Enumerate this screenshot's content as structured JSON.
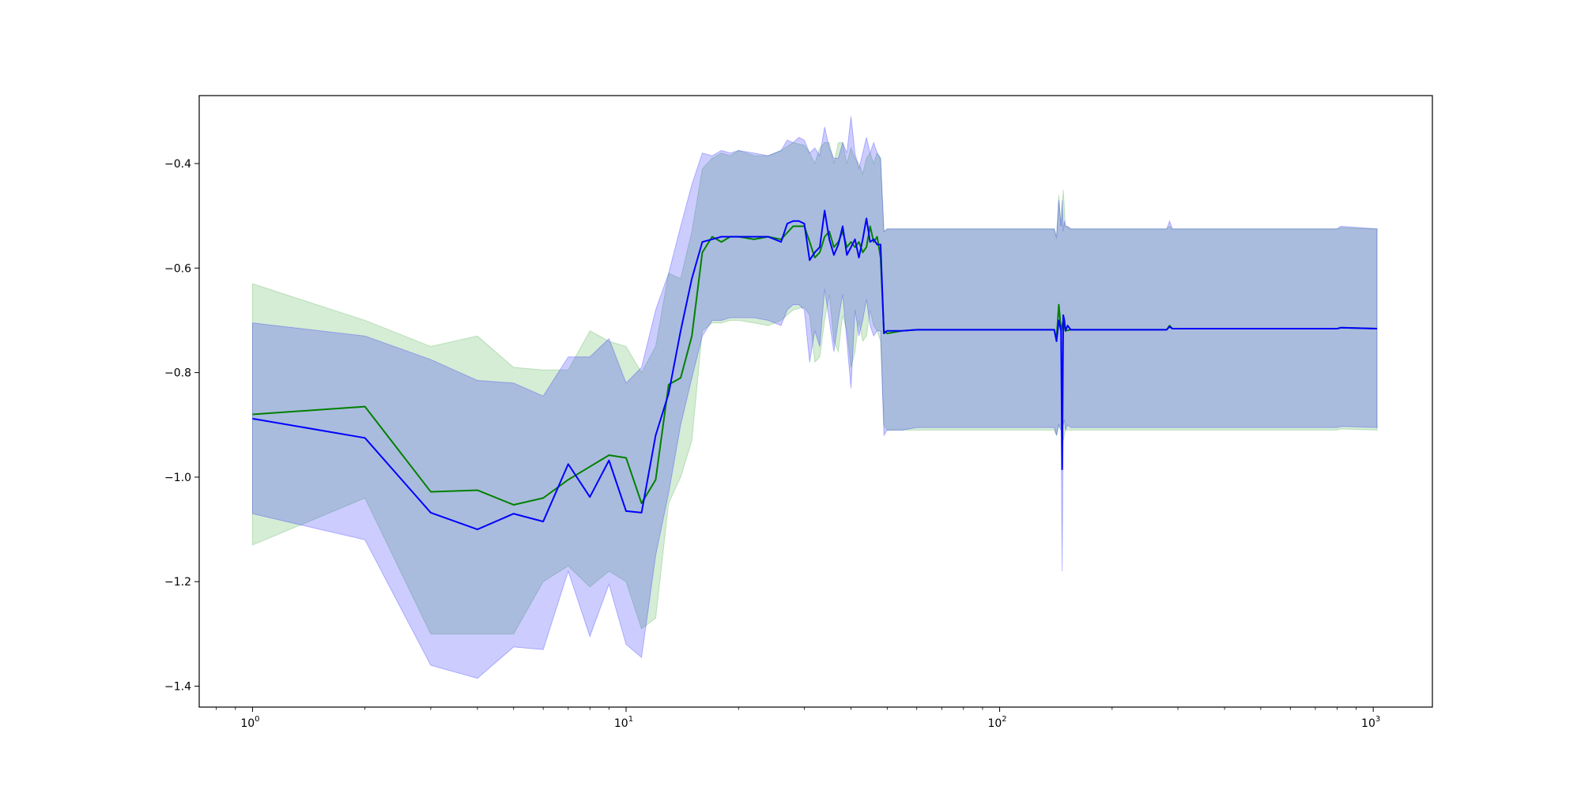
{
  "chart_data": {
    "type": "line",
    "x_scale": "log",
    "x_ticks": [
      {
        "value": 1,
        "base": "10",
        "exp": "0"
      },
      {
        "value": 10,
        "base": "10",
        "exp": "1"
      },
      {
        "value": 100,
        "base": "10",
        "exp": "2"
      },
      {
        "value": 1000,
        "base": "10",
        "exp": "3"
      }
    ],
    "y_ticks": [
      {
        "value": -0.4,
        "label": "−0.4"
      },
      {
        "value": -0.6,
        "label": "−0.6"
      },
      {
        "value": -0.8,
        "label": "−0.8"
      },
      {
        "value": -1.0,
        "label": "−1.0"
      },
      {
        "value": -1.2,
        "label": "−1.2"
      },
      {
        "value": -1.4,
        "label": "−1.4"
      }
    ],
    "xlim": [
      0.72,
      1440
    ],
    "ylim": [
      -1.44,
      -0.27
    ],
    "grid": false,
    "legend": "none",
    "series": [
      {
        "color": "#008000",
        "band_color": "#2ca02c",
        "x": [
          1,
          2,
          3,
          4,
          5,
          6,
          7,
          8,
          9,
          10,
          11,
          12,
          13,
          14,
          15,
          16,
          17,
          18,
          19,
          20,
          22,
          24,
          26,
          28,
          30,
          31,
          32,
          33,
          34,
          35,
          36,
          37,
          38,
          39,
          40,
          41,
          42,
          43,
          44,
          45,
          46,
          47,
          48,
          49,
          50,
          55,
          60,
          70,
          80,
          100,
          120,
          140,
          142,
          144,
          146,
          148,
          150,
          155,
          160,
          200,
          280,
          285,
          290,
          500,
          800,
          820,
          1024
        ],
        "y": [
          -0.88,
          -0.865,
          -1.028,
          -1.025,
          -1.053,
          -1.04,
          -1.005,
          -0.98,
          -0.958,
          -0.963,
          -1.05,
          -1.005,
          -0.823,
          -0.81,
          -0.73,
          -0.57,
          -0.54,
          -0.55,
          -0.54,
          -0.54,
          -0.545,
          -0.54,
          -0.545,
          -0.52,
          -0.52,
          -0.55,
          -0.58,
          -0.57,
          -0.54,
          -0.53,
          -0.56,
          -0.55,
          -0.53,
          -0.56,
          -0.55,
          -0.56,
          -0.55,
          -0.57,
          -0.56,
          -0.52,
          -0.55,
          -0.54,
          -0.58,
          -0.72,
          -0.725,
          -0.72,
          -0.718,
          -0.718,
          -0.718,
          -0.718,
          -0.718,
          -0.718,
          -0.735,
          -0.67,
          -0.72,
          -0.7,
          -0.72,
          -0.718,
          -0.718,
          -0.718,
          -0.718,
          -0.71,
          -0.716,
          -0.716,
          -0.716,
          -0.714,
          -0.716
        ],
        "lower": [
          -1.13,
          -1.04,
          -1.3,
          -1.3,
          -1.3,
          -1.2,
          -1.17,
          -1.21,
          -1.18,
          -1.2,
          -1.29,
          -1.27,
          -1.05,
          -1.0,
          -0.93,
          -0.72,
          -0.705,
          -0.705,
          -0.7,
          -0.7,
          -0.705,
          -0.71,
          -0.7,
          -0.68,
          -0.675,
          -0.69,
          -0.78,
          -0.77,
          -0.7,
          -0.65,
          -0.74,
          -0.76,
          -0.69,
          -0.72,
          -0.79,
          -0.76,
          -0.7,
          -0.74,
          -0.73,
          -0.68,
          -0.71,
          -0.72,
          -0.74,
          -0.9,
          -0.91,
          -0.91,
          -0.91,
          -0.91,
          -0.91,
          -0.91,
          -0.91,
          -0.91,
          -0.92,
          -0.9,
          -0.91,
          -0.93,
          -0.91,
          -0.91,
          -0.91,
          -0.91,
          -0.91,
          -0.91,
          -0.91,
          -0.91,
          -0.91,
          -0.908,
          -0.91
        ],
        "upper": [
          -0.63,
          -0.7,
          -0.75,
          -0.73,
          -0.79,
          -0.795,
          -0.795,
          -0.72,
          -0.74,
          -0.75,
          -0.8,
          -0.75,
          -0.61,
          -0.62,
          -0.53,
          -0.41,
          -0.39,
          -0.38,
          -0.385,
          -0.375,
          -0.385,
          -0.385,
          -0.375,
          -0.36,
          -0.365,
          -0.38,
          -0.4,
          -0.37,
          -0.36,
          -0.36,
          -0.4,
          -0.36,
          -0.36,
          -0.4,
          -0.37,
          -0.39,
          -0.4,
          -0.42,
          -0.39,
          -0.38,
          -0.4,
          -0.38,
          -0.39,
          -0.53,
          -0.525,
          -0.525,
          -0.525,
          -0.525,
          -0.525,
          -0.525,
          -0.525,
          -0.525,
          -0.545,
          -0.46,
          -0.52,
          -0.45,
          -0.52,
          -0.525,
          -0.525,
          -0.525,
          -0.525,
          -0.52,
          -0.525,
          -0.525,
          -0.525,
          -0.523,
          -0.525
        ]
      },
      {
        "color": "#0000ff",
        "band_color": "#0000ff",
        "x": [
          1,
          2,
          3,
          4,
          5,
          6,
          7,
          8,
          9,
          10,
          11,
          12,
          13,
          14,
          15,
          16,
          17,
          18,
          19,
          20,
          22,
          24,
          26,
          27,
          28,
          29,
          30,
          31,
          32,
          33,
          34,
          35,
          36,
          37,
          38,
          39,
          40,
          41,
          42,
          43,
          44,
          45,
          46,
          47,
          48,
          49,
          50,
          55,
          60,
          70,
          80,
          100,
          120,
          140,
          142,
          144,
          146,
          147,
          148,
          149,
          150,
          152,
          155,
          160,
          200,
          280,
          285,
          290,
          500,
          800,
          820,
          1024
        ],
        "y": [
          -0.888,
          -0.925,
          -1.068,
          -1.1,
          -1.07,
          -1.085,
          -0.975,
          -1.038,
          -0.968,
          -1.065,
          -1.068,
          -0.92,
          -0.84,
          -0.72,
          -0.62,
          -0.55,
          -0.545,
          -0.54,
          -0.54,
          -0.54,
          -0.54,
          -0.54,
          -0.55,
          -0.515,
          -0.51,
          -0.51,
          -0.515,
          -0.585,
          -0.57,
          -0.56,
          -0.49,
          -0.545,
          -0.575,
          -0.555,
          -0.52,
          -0.575,
          -0.56,
          -0.545,
          -0.58,
          -0.545,
          -0.505,
          -0.55,
          -0.545,
          -0.555,
          -0.555,
          -0.725,
          -0.72,
          -0.72,
          -0.718,
          -0.718,
          -0.718,
          -0.718,
          -0.718,
          -0.718,
          -0.74,
          -0.7,
          -0.72,
          -0.985,
          -0.69,
          -0.7,
          -0.72,
          -0.71,
          -0.718,
          -0.718,
          -0.718,
          -0.718,
          -0.712,
          -0.716,
          -0.716,
          -0.716,
          -0.714,
          -0.716
        ],
        "lower": [
          -1.07,
          -1.12,
          -1.36,
          -1.385,
          -1.325,
          -1.33,
          -1.18,
          -1.305,
          -1.205,
          -1.32,
          -1.345,
          -1.15,
          -1.03,
          -0.9,
          -0.81,
          -0.73,
          -0.7,
          -0.7,
          -0.695,
          -0.695,
          -0.695,
          -0.7,
          -0.71,
          -0.68,
          -0.67,
          -0.67,
          -0.68,
          -0.78,
          -0.72,
          -0.75,
          -0.64,
          -0.7,
          -0.76,
          -0.7,
          -0.65,
          -0.74,
          -0.83,
          -0.68,
          -0.73,
          -0.7,
          -0.66,
          -0.71,
          -0.73,
          -0.72,
          -0.72,
          -0.92,
          -0.91,
          -0.91,
          -0.905,
          -0.905,
          -0.905,
          -0.905,
          -0.905,
          -0.905,
          -0.92,
          -0.9,
          -0.91,
          -1.18,
          -0.9,
          -0.89,
          -0.91,
          -0.9,
          -0.905,
          -0.905,
          -0.905,
          -0.905,
          -0.905,
          -0.905,
          -0.905,
          -0.905,
          -0.903,
          -0.905
        ],
        "upper": [
          -0.705,
          -0.73,
          -0.775,
          -0.815,
          -0.82,
          -0.845,
          -0.77,
          -0.77,
          -0.735,
          -0.82,
          -0.79,
          -0.68,
          -0.61,
          -0.52,
          -0.44,
          -0.38,
          -0.385,
          -0.375,
          -0.38,
          -0.375,
          -0.38,
          -0.385,
          -0.375,
          -0.355,
          -0.36,
          -0.35,
          -0.355,
          -0.38,
          -0.37,
          -0.385,
          -0.33,
          -0.37,
          -0.39,
          -0.39,
          -0.36,
          -0.38,
          -0.31,
          -0.38,
          -0.41,
          -0.38,
          -0.35,
          -0.38,
          -0.36,
          -0.38,
          -0.39,
          -0.53,
          -0.525,
          -0.525,
          -0.525,
          -0.525,
          -0.525,
          -0.525,
          -0.525,
          -0.525,
          -0.54,
          -0.47,
          -0.52,
          -0.47,
          -0.53,
          -0.51,
          -0.52,
          -0.52,
          -0.525,
          -0.525,
          -0.525,
          -0.525,
          -0.51,
          -0.525,
          -0.525,
          -0.525,
          -0.52,
          -0.525
        ]
      }
    ]
  }
}
